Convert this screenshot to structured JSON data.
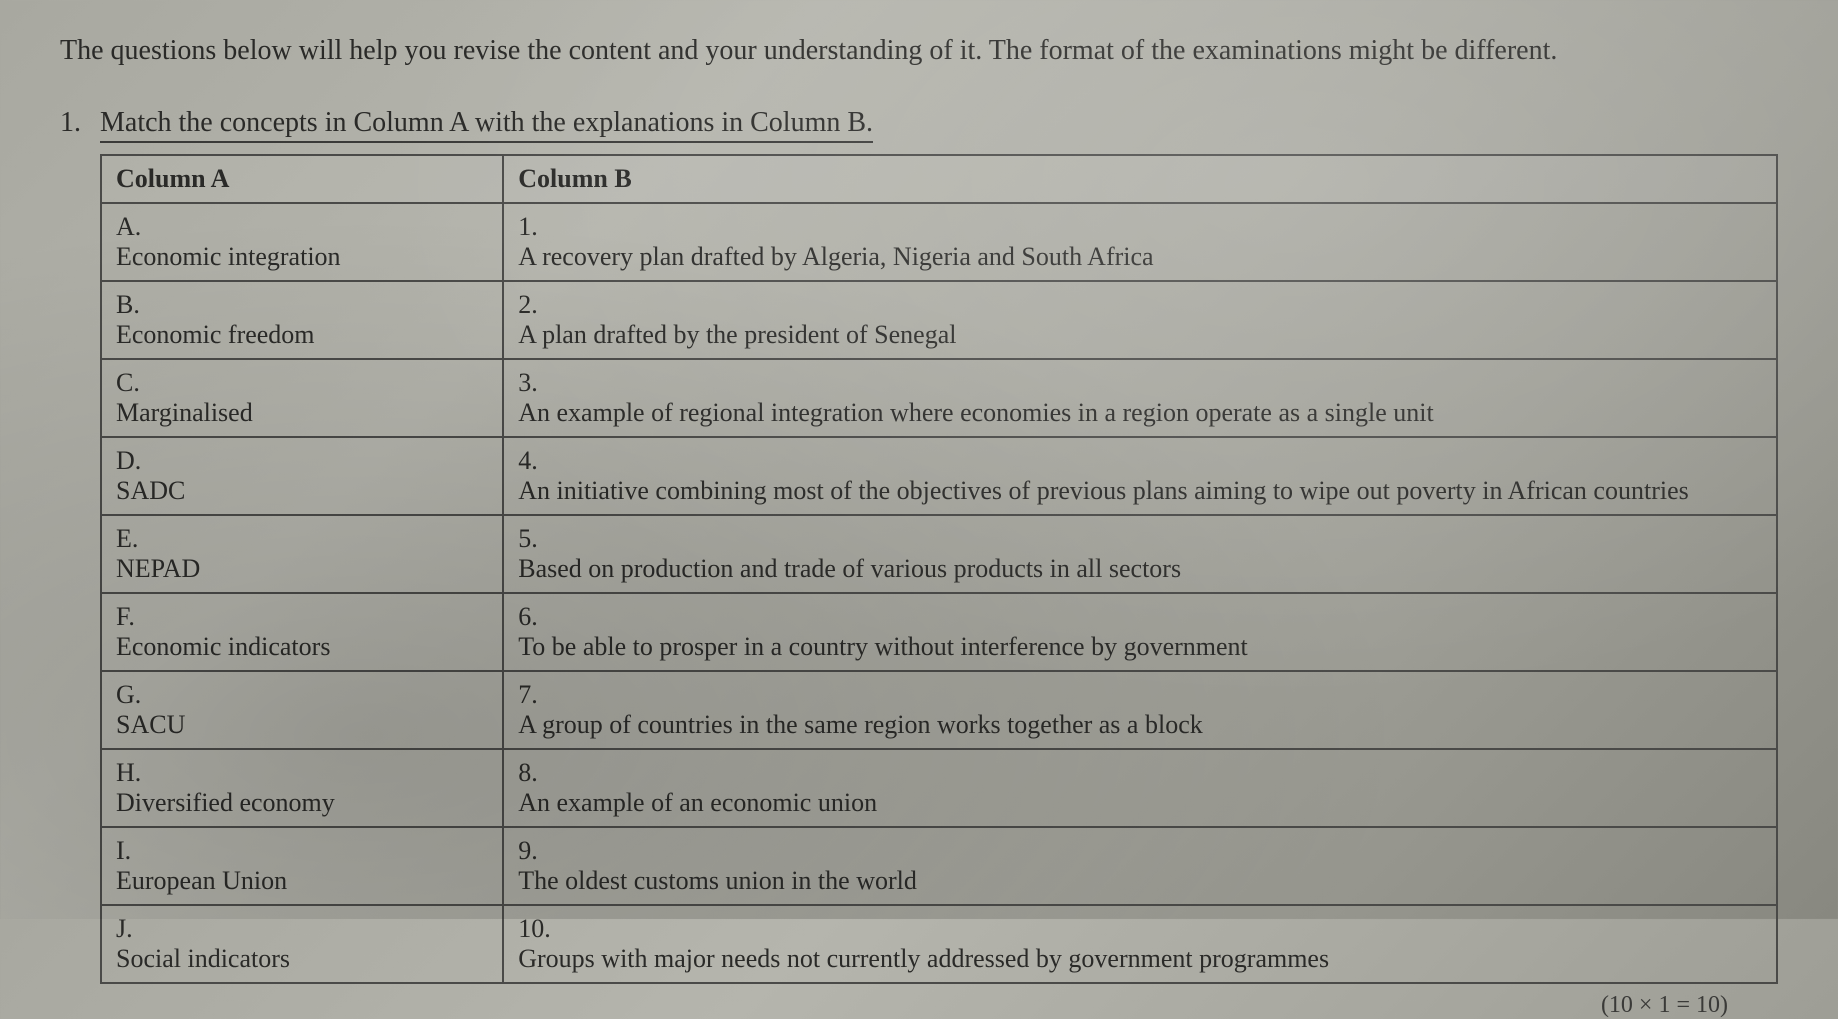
{
  "document": {
    "type": "worksheet",
    "intro": "The questions below will help you revise the content and your understanding of it. The format of the examinations might be different.",
    "question_number": "1.",
    "question_text": "Match the concepts in Column A with the explanations in Column B.",
    "table": {
      "header_a": "Column A",
      "header_b": "Column B",
      "rows": [
        {
          "a_label": "A.",
          "a_text": "Economic integration",
          "b_label": "1.",
          "b_text": "A recovery plan drafted by Algeria, Nigeria and South Africa"
        },
        {
          "a_label": "B.",
          "a_text": "Economic freedom",
          "b_label": "2.",
          "b_text": "A plan drafted by the president of Senegal"
        },
        {
          "a_label": "C.",
          "a_text": "Marginalised",
          "b_label": "3.",
          "b_text": "An example of regional integration where economies in a region operate as a single unit"
        },
        {
          "a_label": "D.",
          "a_text": "SADC",
          "b_label": "4.",
          "b_text": "An initiative combining most of the objectives of previous plans aiming to wipe out poverty in African countries"
        },
        {
          "a_label": "E.",
          "a_text": "NEPAD",
          "b_label": "5.",
          "b_text": "Based on production and trade of various products in all sectors"
        },
        {
          "a_label": "F.",
          "a_text": "Economic indicators",
          "b_label": "6.",
          "b_text": "To be able to prosper in a country without interference by government"
        },
        {
          "a_label": "G.",
          "a_text": "SACU",
          "b_label": "7.",
          "b_text": "A group of countries in the same region works together as a block"
        },
        {
          "a_label": "H.",
          "a_text": "Diversified economy",
          "b_label": "8.",
          "b_text": "An example of an economic union"
        },
        {
          "a_label": "I.",
          "a_text": "European Union",
          "b_label": "9.",
          "b_text": "The oldest customs union in the world"
        },
        {
          "a_label": "J.",
          "a_text": "Social indicators",
          "b_label": "10.",
          "b_text": "Groups with major needs not currently addressed by government programmes"
        }
      ]
    },
    "marks": "(10 × 1 = 10)"
  },
  "styling": {
    "background_gradient_start": "#a8a8a0",
    "background_gradient_end": "#888880",
    "text_color": "#2a2a28",
    "border_color": "#4a4a48",
    "font_family": "Georgia, Times New Roman, serif",
    "intro_fontsize": 28,
    "table_fontsize": 26,
    "col_a_width_pct": 24,
    "col_b_width_pct": 76
  }
}
